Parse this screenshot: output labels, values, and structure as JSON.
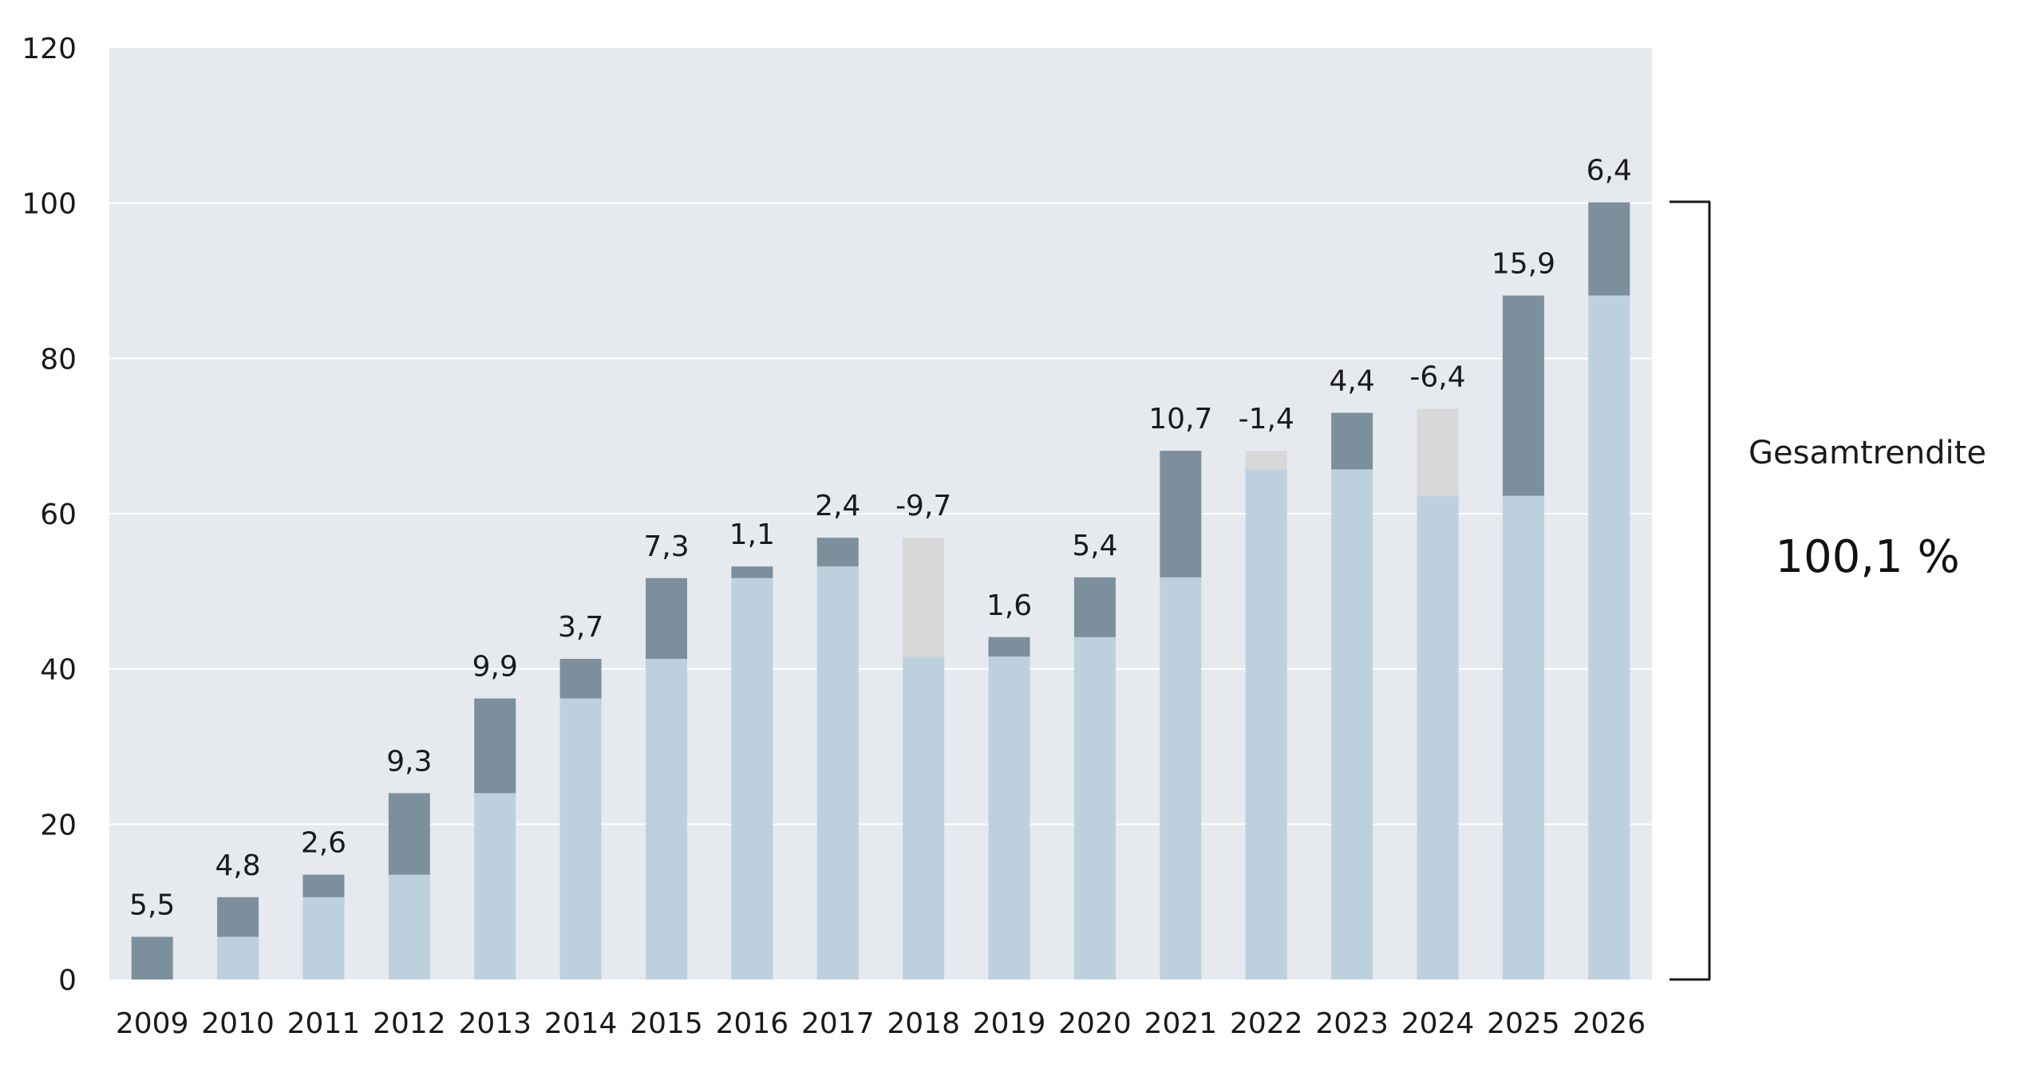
{
  "chart_data": {
    "type": "bar",
    "title": "",
    "xlabel": "",
    "ylabel": "",
    "ylim": [
      0,
      120
    ],
    "y_ticks": [
      "0",
      "20",
      "40",
      "60",
      "80",
      "100",
      "120"
    ],
    "categories": [
      "2009",
      "2010",
      "2011",
      "2012",
      "2013",
      "2014",
      "2015",
      "2016",
      "2017",
      "2018",
      "2019",
      "2020",
      "2021",
      "2022",
      "2023",
      "2024",
      "2025",
      "2026"
    ],
    "value_labels": [
      "5,5",
      "4,8",
      "2,6",
      "9,3",
      "9,9",
      "3,7",
      "7,3",
      "1,1",
      "2,4",
      "-9,7",
      "1,6",
      "5,4",
      "10,7",
      "-1,4",
      "4,4",
      "-6,4",
      "15,9",
      "6,4"
    ],
    "series": [
      {
        "values": [
          0,
          5.5,
          10.6,
          13.5,
          24,
          36.2,
          41.3,
          51.7,
          53.2,
          41.6,
          41.6,
          44.1,
          51.8,
          65.7,
          65.7,
          62.3,
          62.3,
          88.1
        ]
      },
      {
        "values": [
          5.5,
          5.1,
          2.9,
          10.5,
          12.2,
          5.1,
          10.4,
          1.5,
          3.7,
          0,
          2.5,
          7.7,
          16.3,
          0,
          7.3,
          0,
          25.8,
          12.0
        ]
      },
      {
        "values": [
          0,
          0,
          0,
          0,
          0,
          0,
          0,
          0,
          0,
          15.3,
          0,
          0,
          0,
          2.4,
          0,
          11.2,
          0,
          0
        ]
      }
    ],
    "grid": true,
    "colors": {
      "plot_background": "#e6e9ed",
      "gridline": "#ffffff",
      "base": "#bdd0de",
      "gain": "#7b909c",
      "loss": "#d8d8d8"
    }
  },
  "summary": {
    "label": "Gesamtrendite",
    "value": "100,1 %"
  }
}
